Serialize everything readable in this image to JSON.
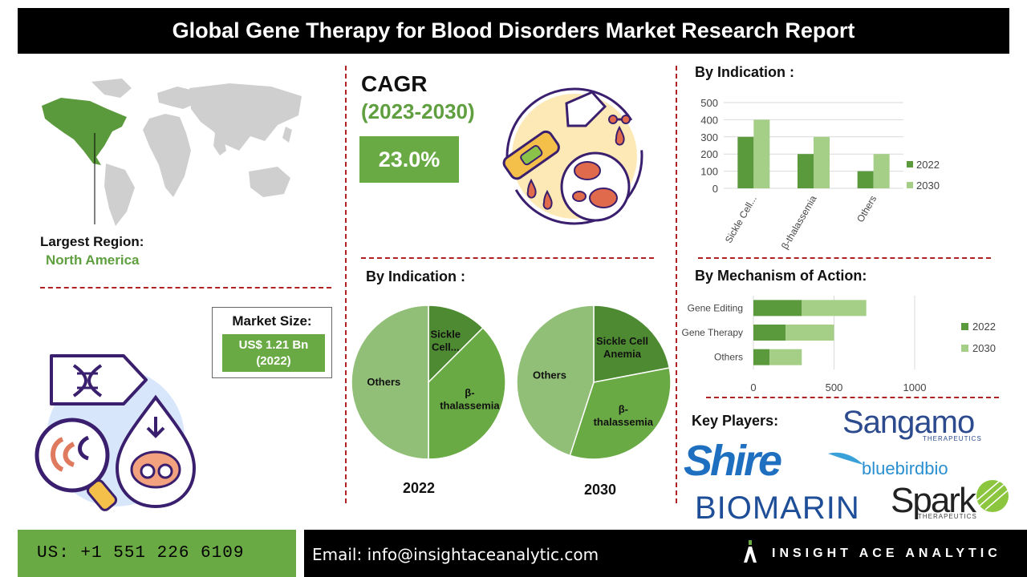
{
  "header": {
    "title": "Global Gene Therapy for Blood Disorders Market Research Report"
  },
  "region": {
    "label": "Largest Region:",
    "value": "North America"
  },
  "cagr": {
    "label": "CAGR",
    "period": "(2023-2030)",
    "value": "23.0%"
  },
  "market_size": {
    "label": "Market Size:",
    "value": "US$ 1.21 Bn",
    "year": "(2022)"
  },
  "indication_bar": {
    "heading": "By Indication :"
  },
  "indication_pie": {
    "heading": "By Indication :"
  },
  "mechanism": {
    "heading": "By Mechanism of Action:"
  },
  "key_players": {
    "heading": "Key Players:",
    "logos": [
      "Sangamo",
      "THERAPEUTICS",
      "Shire",
      "bluebirdbio",
      "BIOMARIN",
      "Spark",
      "THERAPEUTICS"
    ]
  },
  "footer": {
    "phone": "US: +1 551 226 6109",
    "email": "Email: info@insightaceanalytic.com",
    "brand": "INSIGHT ACE ANALYTIC"
  },
  "colors": {
    "accent_green": "#6aaa45",
    "dark_green": "#5b9a3c",
    "light_green": "#a5cf86",
    "divider_red": "#b02222"
  },
  "icons": [
    "world-map-icon",
    "blood-cells-icon",
    "gene-therapy-icon",
    "insightace-logo-icon"
  ],
  "chart_data": [
    {
      "type": "bar",
      "orientation": "vertical",
      "categories": [
        "Sickle Cell...",
        "β-thalassemia",
        "Others"
      ],
      "series": [
        {
          "name": "2022",
          "values": [
            300,
            200,
            100
          ],
          "color": "#5b9a3c"
        },
        {
          "name": "2030",
          "values": [
            400,
            300,
            200
          ],
          "color": "#a5cf86"
        }
      ],
      "yticks": [
        0,
        100,
        200,
        300,
        400,
        500
      ],
      "ylim": [
        0,
        500
      ],
      "grid": true,
      "legend": "right"
    },
    {
      "type": "pie",
      "label": "2022",
      "slices": [
        {
          "name": "Sickle Cell...",
          "value": 12.5,
          "color": "#4e8a32"
        },
        {
          "name": "β-thalassemia",
          "value": 37.5,
          "color": "#6aaa45"
        },
        {
          "name": "Others",
          "value": 50,
          "color": "#92bf78"
        }
      ]
    },
    {
      "type": "pie",
      "label": "2030",
      "slices": [
        {
          "name": "Sickle Cell Anemia",
          "value": 22,
          "color": "#4e8a32"
        },
        {
          "name": "β-thalassemia",
          "value": 33,
          "color": "#6aaa45"
        },
        {
          "name": "Others",
          "value": 45,
          "color": "#92bf78"
        }
      ]
    },
    {
      "type": "bar",
      "orientation": "horizontal",
      "stacked": true,
      "categories": [
        "Gene Editing",
        "Gene Therapy",
        "Others"
      ],
      "series": [
        {
          "name": "2022",
          "values": [
            300,
            200,
            100
          ],
          "color": "#5b9a3c"
        },
        {
          "name": "2030",
          "values": [
            400,
            300,
            200
          ],
          "color": "#a5cf86"
        }
      ],
      "xticks": [
        0,
        500,
        1000
      ],
      "xlim": [
        0,
        1000
      ],
      "grid": true,
      "legend": "right"
    }
  ]
}
